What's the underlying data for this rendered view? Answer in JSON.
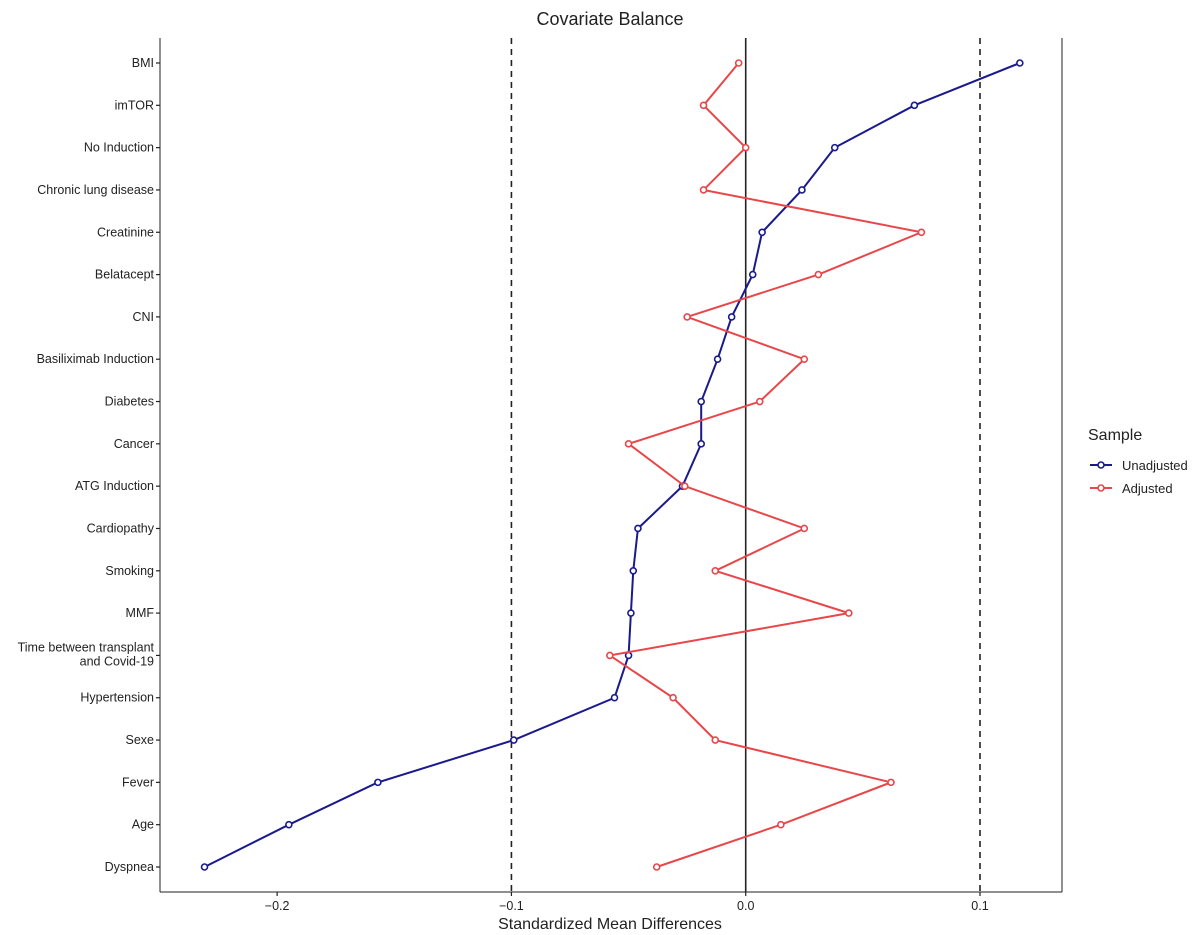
{
  "chart_data": {
    "type": "line",
    "title": "Covariate Balance",
    "xlabel": "Standardized Mean Differences",
    "ylabel": "",
    "xlim": [
      -0.25,
      0.135
    ],
    "xticks": [
      -0.2,
      -0.1,
      0.0,
      0.1
    ],
    "xtick_labels": [
      "−0.2",
      "−0.1",
      "0.0",
      "0.1"
    ],
    "reference_lines": [
      {
        "x": 0.0,
        "style": "solid"
      },
      {
        "x": -0.1,
        "style": "dashed"
      },
      {
        "x": 0.1,
        "style": "dashed"
      }
    ],
    "categories": [
      "BMI",
      "imTOR",
      "No Induction",
      "Chronic lung disease",
      "Creatinine",
      "Belatacept",
      "CNI",
      "Basiliximab Induction",
      "Diabetes",
      "Cancer",
      "ATG Induction",
      "Cardiopathy",
      "Smoking",
      "MMF",
      "Time between transplant\nand Covid-19",
      "Hypertension",
      "Sexe",
      "Fever",
      "Age",
      "Dyspnea"
    ],
    "series": [
      {
        "name": "Unadjusted",
        "color": "#1a1a8c",
        "values": [
          0.117,
          0.072,
          0.038,
          0.024,
          0.007,
          0.003,
          -0.006,
          -0.012,
          -0.019,
          -0.019,
          -0.027,
          -0.046,
          -0.048,
          -0.049,
          -0.05,
          -0.056,
          -0.099,
          -0.157,
          -0.195,
          -0.231
        ]
      },
      {
        "name": "Adjusted",
        "color": "#e8474a",
        "values": [
          -0.003,
          -0.018,
          0.0,
          -0.018,
          0.075,
          0.031,
          -0.025,
          0.025,
          0.006,
          -0.05,
          -0.026,
          0.025,
          -0.013,
          0.044,
          -0.058,
          -0.031,
          -0.013,
          0.062,
          0.015,
          -0.038
        ]
      }
    ],
    "legend": {
      "title": "Sample",
      "position": "right"
    },
    "grid": false
  }
}
